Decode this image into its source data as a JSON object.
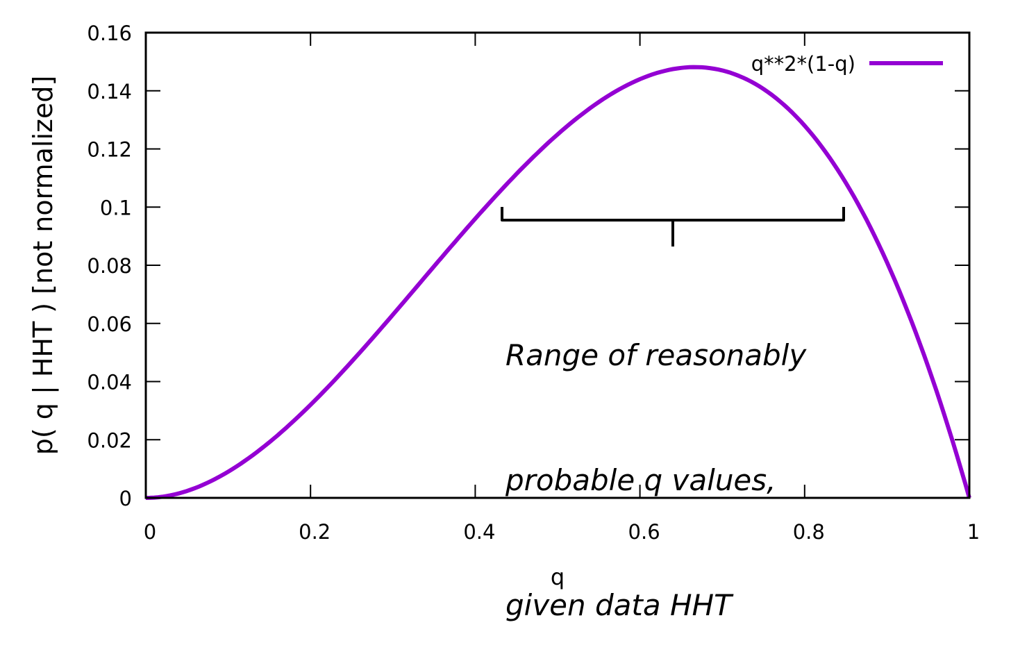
{
  "chart_data": {
    "type": "line",
    "title": "",
    "xlabel": "q",
    "ylabel": "p( q | HHT ) [not normalized]",
    "xlim": [
      0,
      1
    ],
    "ylim": [
      0,
      0.16
    ],
    "grid": false,
    "legend_position": "top-right",
    "x_ticks": [
      "0",
      "0.2",
      "0.4",
      "0.6",
      "0.8",
      "1"
    ],
    "y_ticks": [
      "0",
      "0.02",
      "0.04",
      "0.06",
      "0.08",
      "0.1",
      "0.12",
      "0.14",
      "0.16"
    ],
    "series": [
      {
        "name": "q**2*(1-q)",
        "color": "#9400D3",
        "x": [
          0,
          0.05,
          0.1,
          0.15,
          0.2,
          0.25,
          0.3,
          0.35,
          0.4,
          0.45,
          0.5,
          0.55,
          0.6,
          0.65,
          0.6667,
          0.7,
          0.75,
          0.8,
          0.85,
          0.9,
          0.95,
          1.0
        ],
        "y": [
          0,
          0.0024,
          0.009,
          0.0191,
          0.032,
          0.0469,
          0.063,
          0.0796,
          0.096,
          0.1114,
          0.125,
          0.1361,
          0.144,
          0.1479,
          0.1481,
          0.147,
          0.1406,
          0.128,
          0.1084,
          0.081,
          0.0451,
          0
        ]
      }
    ],
    "annotations": [
      {
        "type": "bracket",
        "x_range": [
          0.43,
          0.85
        ],
        "y": 0.1,
        "text": "Range of reasonably\nprobable q values,\ngiven data HHT"
      }
    ]
  },
  "labels": {
    "xlabel": "q",
    "ylabel": "p( q | HHT ) [not normalized]",
    "legend": "q**2*(1-q)",
    "annotation_lines": [
      "Range of reasonably",
      "probable q values,",
      "given data HHT"
    ]
  },
  "colors": {
    "curve": "#9400D3",
    "axis": "#000000"
  }
}
